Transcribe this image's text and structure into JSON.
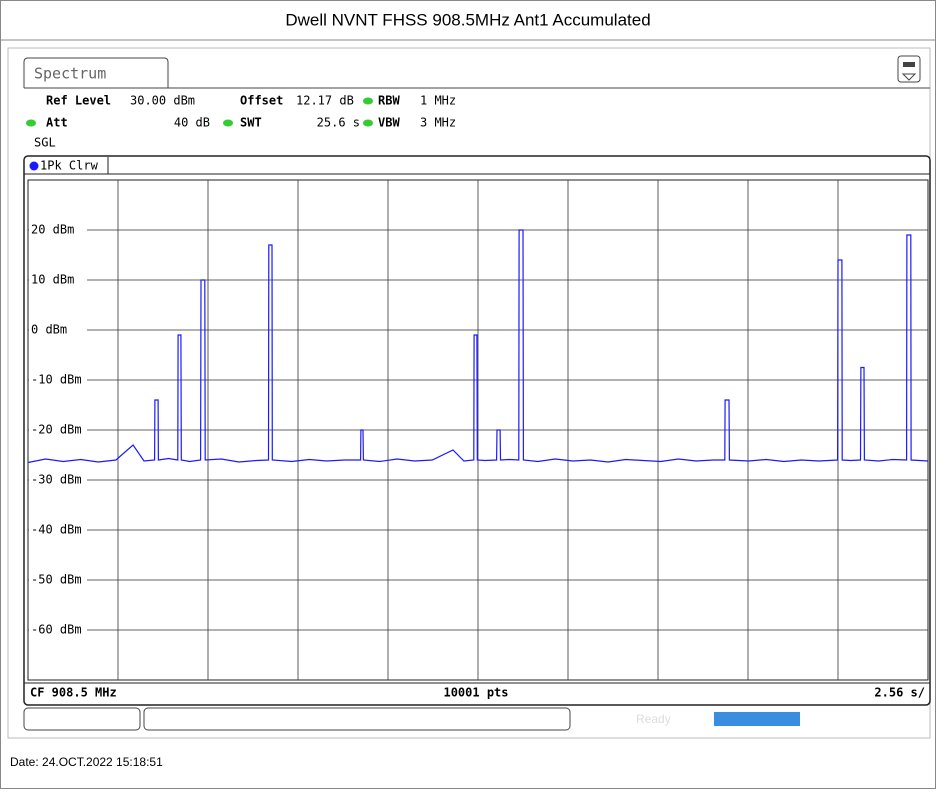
{
  "chart_data": {
    "type": "line",
    "title": "Dwell NVNT FHSS 908.5MHz Ant1 Accumulated",
    "trace_label": "1Pk Clrw",
    "x": [
      0,
      0.5,
      1.0,
      1.5,
      2.0,
      2.5,
      2.99,
      3.3,
      3.6,
      3.61,
      3.7,
      3.71,
      4.0,
      4.26,
      4.27,
      4.35,
      4.36,
      4.6,
      4.91,
      4.92,
      5.03,
      5.04,
      5.5,
      6.0,
      6.5,
      6.84,
      6.85,
      6.94,
      6.95,
      7.5,
      8.0,
      8.5,
      9.0,
      9.46,
      9.47,
      9.53,
      9.54,
      10.0,
      10.5,
      11.0,
      11.5,
      12.09,
      12.4,
      12.68,
      12.69,
      12.77,
      12.78,
      13.0,
      13.33,
      13.34,
      13.43,
      13.44,
      13.7,
      13.96,
      13.97,
      14.08,
      14.09,
      14.5,
      15.0,
      15.5,
      16.0,
      16.5,
      17.0,
      17.5,
      18.0,
      18.5,
      19.0,
      19.5,
      19.82,
      19.83,
      19.94,
      19.95,
      20.5,
      21.0,
      21.5,
      22.0,
      22.5,
      23.03,
      23.04,
      23.15,
      23.16,
      23.4,
      23.68,
      23.69,
      23.78,
      23.79,
      24.2,
      24.6,
      24.99,
      25.0,
      25.11,
      25.12,
      25.6
    ],
    "series": [
      {
        "name": "1Pk Clrw",
        "color": "#1a1aff",
        "values": [
          -26.5,
          -25.8,
          -26.3,
          -25.9,
          -26.4,
          -26.0,
          -23,
          -26.2,
          -26,
          -14,
          -14,
          -26,
          -25.7,
          -26,
          -1,
          -1,
          -26,
          -26.3,
          -26,
          10,
          10,
          -26,
          -25.8,
          -26.4,
          -26.1,
          -26,
          17,
          17,
          -26,
          -26.3,
          -25.9,
          -26.2,
          -26,
          -26,
          -20,
          -20,
          -26,
          -26.3,
          -25.8,
          -26.2,
          -26,
          -24,
          -26.2,
          -26,
          -1,
          -1,
          -26,
          -26.1,
          -26,
          -20,
          -20,
          -26,
          -25.9,
          -26,
          20,
          20,
          -26,
          -26.3,
          -25.8,
          -26.2,
          -26,
          -26.4,
          -25.9,
          -26.1,
          -26.3,
          -25.8,
          -26.2,
          -26,
          -26,
          -14,
          -14,
          -26,
          -26.2,
          -25.9,
          -26.3,
          -26,
          -26.2,
          -26,
          14,
          14,
          -26,
          -26.1,
          -26,
          -7.5,
          -7.5,
          -26,
          -26.2,
          -25.9,
          -26,
          19,
          19,
          -26,
          -26.2
        ]
      }
    ],
    "xlim": [
      0,
      25.6
    ],
    "xticks": [
      2.56,
      5.12,
      7.68,
      10.24,
      12.8,
      15.36,
      17.92,
      20.48,
      23.04
    ],
    "ylim": [
      -70,
      30
    ],
    "yticks": [
      {
        "value": 20,
        "label": "20 dBm"
      },
      {
        "value": 10,
        "label": "10 dBm"
      },
      {
        "value": 0,
        "label": "0 dBm"
      },
      {
        "value": -10,
        "label": "-10 dBm"
      },
      {
        "value": -20,
        "label": "-20 dBm"
      },
      {
        "value": -30,
        "label": "-30 dBm"
      },
      {
        "value": -40,
        "label": "-40 dBm"
      },
      {
        "value": -50,
        "label": "-50 dBm"
      },
      {
        "value": -60,
        "label": "-60 dBm"
      }
    ],
    "grid": true,
    "footer_left": "CF 908.5 MHz",
    "footer_center": "10001 pts",
    "footer_right": "2.56 s/"
  },
  "instrument": {
    "tab": "Spectrum",
    "ref_level_label": "Ref Level",
    "ref_level": "30.00 dBm",
    "offset_label": "Offset",
    "offset": "12.17 dB",
    "rbw_label": "RBW",
    "rbw": "1 MHz",
    "att_label": "Att",
    "att": "40 dB",
    "swt_label": "SWT",
    "swt": "25.6 s",
    "vbw_label": "VBW",
    "vbw": "3 MHz",
    "mode": "SGL",
    "status": "Ready"
  },
  "footer": {
    "date": "Date: 24.OCT.2022  15:18:51"
  }
}
